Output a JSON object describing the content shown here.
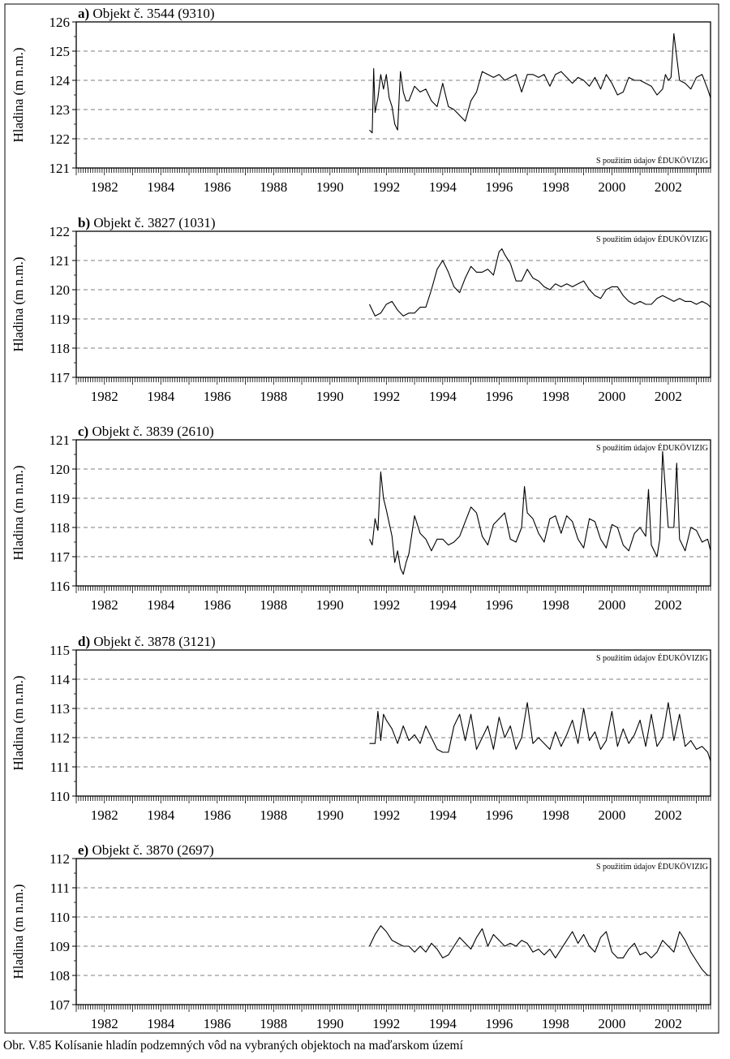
{
  "caption": "Obr. V.85 Kolísanie hladín podzemných vôd na vybraných objektoch na maďarskom území",
  "chart_data": [
    {
      "type": "line",
      "title_bold": "a)",
      "title": "Objekt č. 3544 (9310)",
      "ylabel": "Hladina (m n.m.)",
      "xlabel": "",
      "source_note": "S použitím údajov ÉDUKÖVIZIG",
      "note_position": "bottom-right",
      "xlim": [
        1981.0,
        2003.5
      ],
      "ylim": [
        121,
        126
      ],
      "yticks": [
        121,
        122,
        123,
        124,
        125,
        126
      ],
      "xticks": [
        1982,
        1984,
        1986,
        1988,
        1990,
        1992,
        1994,
        1996,
        1998,
        2000,
        2002
      ],
      "grid": "dashed-horizontal",
      "series": [
        {
          "x": [
            1991.4,
            1991.5,
            1991.55,
            1991.6,
            1991.7,
            1991.8,
            1991.9,
            1992.0,
            1992.1,
            1992.2,
            1992.3,
            1992.4,
            1992.5,
            1992.6,
            1992.7,
            1992.8,
            1993.0,
            1993.2,
            1993.4,
            1993.6,
            1993.8,
            1994.0,
            1994.2,
            1994.4,
            1994.6,
            1994.8,
            1995.0,
            1995.2,
            1995.4,
            1995.6,
            1995.8,
            1996.0,
            1996.2,
            1996.4,
            1996.6,
            1996.8,
            1997.0,
            1997.2,
            1997.4,
            1997.6,
            1997.8,
            1998.0,
            1998.2,
            1998.4,
            1998.6,
            1998.8,
            1999.0,
            1999.2,
            1999.4,
            1999.6,
            1999.8,
            2000.0,
            2000.2,
            2000.4,
            2000.6,
            2000.8,
            2001.0,
            2001.2,
            2001.4,
            2001.6,
            2001.8,
            2001.9,
            2002.0,
            2002.1,
            2002.2,
            2002.4,
            2002.6,
            2002.8,
            2003.0,
            2003.2,
            2003.4,
            2003.5
          ],
          "y": [
            122.3,
            122.2,
            124.4,
            122.9,
            123.4,
            124.2,
            123.7,
            124.2,
            123.4,
            123.1,
            122.5,
            122.3,
            124.3,
            123.6,
            123.3,
            123.3,
            123.8,
            123.6,
            123.7,
            123.3,
            123.1,
            123.9,
            123.1,
            123.0,
            122.8,
            122.6,
            123.3,
            123.6,
            124.3,
            124.2,
            124.1,
            124.2,
            124.0,
            124.1,
            124.2,
            123.6,
            124.2,
            124.2,
            124.1,
            124.2,
            123.8,
            124.2,
            124.3,
            124.1,
            123.9,
            124.1,
            124.0,
            123.8,
            124.1,
            123.7,
            124.2,
            123.9,
            123.5,
            123.6,
            124.1,
            124.0,
            124.0,
            123.9,
            123.8,
            123.5,
            123.7,
            124.2,
            124.0,
            124.1,
            125.6,
            124.0,
            123.9,
            123.7,
            124.1,
            124.2,
            123.7,
            123.4
          ]
        }
      ]
    },
    {
      "type": "line",
      "title_bold": "b)",
      "title": "Objekt č. 3827 (1031)",
      "ylabel": "Hladina (m n.m.)",
      "xlabel": "",
      "source_note": "S použitím údajov ÉDUKÖVIZIG",
      "note_position": "top-right",
      "xlim": [
        1981.0,
        2003.5
      ],
      "ylim": [
        117,
        122
      ],
      "yticks": [
        117,
        118,
        119,
        120,
        121,
        122
      ],
      "xticks": [
        1982,
        1984,
        1986,
        1988,
        1990,
        1992,
        1994,
        1996,
        1998,
        2000,
        2002
      ],
      "grid": "dashed-horizontal",
      "series": [
        {
          "x": [
            1991.4,
            1991.6,
            1991.8,
            1992.0,
            1992.2,
            1992.4,
            1992.6,
            1992.8,
            1993.0,
            1993.2,
            1993.4,
            1993.6,
            1993.8,
            1994.0,
            1994.2,
            1994.4,
            1994.6,
            1994.8,
            1995.0,
            1995.2,
            1995.4,
            1995.6,
            1995.8,
            1996.0,
            1996.1,
            1996.2,
            1996.4,
            1996.6,
            1996.8,
            1997.0,
            1997.2,
            1997.4,
            1997.6,
            1997.8,
            1998.0,
            1998.2,
            1998.4,
            1998.6,
            1998.8,
            1999.0,
            1999.2,
            1999.4,
            1999.6,
            1999.8,
            2000.0,
            2000.2,
            2000.4,
            2000.6,
            2000.8,
            2001.0,
            2001.2,
            2001.4,
            2001.6,
            2001.8,
            2002.0,
            2002.2,
            2002.4,
            2002.6,
            2002.8,
            2003.0,
            2003.2,
            2003.4,
            2003.5
          ],
          "y": [
            119.5,
            119.1,
            119.2,
            119.5,
            119.6,
            119.3,
            119.1,
            119.2,
            119.2,
            119.4,
            119.4,
            120.0,
            120.7,
            121.0,
            120.6,
            120.1,
            119.9,
            120.4,
            120.8,
            120.6,
            120.6,
            120.7,
            120.5,
            121.3,
            121.4,
            121.2,
            120.9,
            120.3,
            120.3,
            120.7,
            120.4,
            120.3,
            120.1,
            120.0,
            120.2,
            120.1,
            120.2,
            120.1,
            120.2,
            120.3,
            120.0,
            119.8,
            119.7,
            120.0,
            120.1,
            120.1,
            119.8,
            119.6,
            119.5,
            119.6,
            119.5,
            119.5,
            119.7,
            119.8,
            119.7,
            119.6,
            119.7,
            119.6,
            119.6,
            119.5,
            119.6,
            119.5,
            119.4
          ]
        }
      ]
    },
    {
      "type": "line",
      "title_bold": "c)",
      "title": "Objekt č. 3839 (2610)",
      "ylabel": "Hladina (m n.m.)",
      "xlabel": "",
      "source_note": "S použitím údajov ÉDUKÖVIZIG",
      "note_position": "top-right",
      "xlim": [
        1981.0,
        2003.5
      ],
      "ylim": [
        116,
        121
      ],
      "yticks": [
        116,
        117,
        118,
        119,
        120,
        121
      ],
      "xticks": [
        1982,
        1984,
        1986,
        1988,
        1990,
        1992,
        1994,
        1996,
        1998,
        2000,
        2002
      ],
      "grid": "dashed-horizontal",
      "series": [
        {
          "x": [
            1991.4,
            1991.5,
            1991.6,
            1991.7,
            1991.8,
            1991.9,
            1992.0,
            1992.2,
            1992.3,
            1992.4,
            1992.5,
            1992.6,
            1992.7,
            1992.8,
            1993.0,
            1993.2,
            1993.4,
            1993.6,
            1993.8,
            1994.0,
            1994.2,
            1994.4,
            1994.6,
            1994.8,
            1995.0,
            1995.2,
            1995.4,
            1995.6,
            1995.8,
            1996.0,
            1996.2,
            1996.4,
            1996.6,
            1996.8,
            1996.9,
            1997.0,
            1997.2,
            1997.4,
            1997.6,
            1997.8,
            1998.0,
            1998.2,
            1998.4,
            1998.6,
            1998.8,
            1999.0,
            1999.2,
            1999.4,
            1999.6,
            1999.8,
            2000.0,
            2000.2,
            2000.4,
            2000.6,
            2000.8,
            2001.0,
            2001.2,
            2001.3,
            2001.4,
            2001.6,
            2001.7,
            2001.8,
            2002.0,
            2002.2,
            2002.3,
            2002.4,
            2002.6,
            2002.8,
            2003.0,
            2003.2,
            2003.4,
            2003.5
          ],
          "y": [
            117.6,
            117.4,
            118.3,
            117.9,
            119.9,
            119.0,
            118.6,
            117.7,
            116.8,
            117.2,
            116.6,
            116.4,
            116.8,
            117.1,
            118.4,
            117.8,
            117.6,
            117.2,
            117.6,
            117.6,
            117.4,
            117.5,
            117.7,
            118.2,
            118.7,
            118.5,
            117.7,
            117.4,
            118.1,
            118.3,
            118.5,
            117.6,
            117.5,
            118.0,
            119.4,
            118.5,
            118.3,
            117.8,
            117.5,
            118.3,
            118.4,
            117.8,
            118.4,
            118.2,
            117.6,
            117.3,
            118.3,
            118.2,
            117.6,
            117.3,
            118.1,
            118.0,
            117.4,
            117.2,
            117.8,
            118.0,
            117.7,
            119.3,
            117.4,
            117.0,
            117.6,
            120.6,
            118.0,
            118.0,
            120.2,
            117.6,
            117.2,
            118.0,
            117.9,
            117.5,
            117.6,
            117.2
          ]
        }
      ]
    },
    {
      "type": "line",
      "title_bold": "d)",
      "title": "Objekt č. 3878 (3121)",
      "ylabel": "Hladina (m n.m.)",
      "xlabel": "",
      "source_note": "S použitím údajov ÉDUKÖVIZIG",
      "note_position": "top-right",
      "xlim": [
        1981.0,
        2003.5
      ],
      "ylim": [
        110,
        115
      ],
      "yticks": [
        110,
        111,
        112,
        113,
        114,
        115
      ],
      "xticks": [
        1982,
        1984,
        1986,
        1988,
        1990,
        1992,
        1994,
        1996,
        1998,
        2000,
        2002
      ],
      "grid": "dashed-horizontal",
      "series": [
        {
          "x": [
            1991.4,
            1991.6,
            1991.7,
            1991.8,
            1991.9,
            1992.0,
            1992.2,
            1992.4,
            1992.6,
            1992.8,
            1993.0,
            1993.2,
            1993.4,
            1993.6,
            1993.8,
            1994.0,
            1994.2,
            1994.4,
            1994.6,
            1994.8,
            1995.0,
            1995.2,
            1995.4,
            1995.6,
            1995.8,
            1996.0,
            1996.2,
            1996.4,
            1996.6,
            1996.8,
            1997.0,
            1997.2,
            1997.4,
            1997.6,
            1997.8,
            1998.0,
            1998.2,
            1998.4,
            1998.6,
            1998.8,
            1999.0,
            1999.2,
            1999.4,
            1999.6,
            1999.8,
            2000.0,
            2000.2,
            2000.4,
            2000.6,
            2000.8,
            2001.0,
            2001.2,
            2001.4,
            2001.6,
            2001.8,
            2002.0,
            2002.2,
            2002.4,
            2002.6,
            2002.8,
            2003.0,
            2003.2,
            2003.4,
            2003.5
          ],
          "y": [
            111.8,
            111.8,
            112.9,
            111.9,
            112.8,
            112.6,
            112.3,
            111.8,
            112.4,
            111.9,
            112.1,
            111.8,
            112.4,
            112.0,
            111.6,
            111.5,
            111.5,
            112.4,
            112.8,
            111.9,
            112.8,
            111.6,
            112.0,
            112.4,
            111.6,
            112.7,
            112.0,
            112.4,
            111.6,
            112.0,
            113.2,
            111.8,
            112.0,
            111.8,
            111.6,
            112.2,
            111.7,
            112.1,
            112.6,
            111.8,
            113.0,
            111.9,
            112.2,
            111.6,
            111.9,
            112.9,
            111.7,
            112.3,
            111.8,
            112.1,
            112.6,
            111.7,
            112.8,
            111.7,
            112.0,
            113.2,
            111.9,
            112.8,
            111.7,
            111.9,
            111.6,
            111.7,
            111.5,
            111.2
          ]
        }
      ]
    },
    {
      "type": "line",
      "title_bold": "e)",
      "title": "Objekt č. 3870 (2697)",
      "ylabel": "Hladina (m n.m.)",
      "xlabel": "",
      "source_note": "S použitím údajov ÉDUKÖVIZIG",
      "note_position": "top-right",
      "xlim": [
        1981.0,
        2003.5
      ],
      "ylim": [
        107,
        112
      ],
      "yticks": [
        107,
        108,
        109,
        110,
        111,
        112
      ],
      "xticks": [
        1982,
        1984,
        1986,
        1988,
        1990,
        1992,
        1994,
        1996,
        1998,
        2000,
        2002
      ],
      "grid": "dashed-horizontal",
      "series": [
        {
          "x": [
            1991.4,
            1991.6,
            1991.8,
            1992.0,
            1992.2,
            1992.4,
            1992.6,
            1992.8,
            1993.0,
            1993.2,
            1993.4,
            1993.6,
            1993.8,
            1994.0,
            1994.2,
            1994.4,
            1994.6,
            1994.8,
            1995.0,
            1995.2,
            1995.4,
            1995.6,
            1995.8,
            1996.0,
            1996.2,
            1996.4,
            1996.6,
            1996.8,
            1997.0,
            1997.2,
            1997.4,
            1997.6,
            1997.8,
            1998.0,
            1998.2,
            1998.4,
            1998.6,
            1998.8,
            1999.0,
            1999.2,
            1999.4,
            1999.6,
            1999.8,
            2000.0,
            2000.2,
            2000.4,
            2000.6,
            2000.8,
            2001.0,
            2001.2,
            2001.4,
            2001.6,
            2001.8,
            2002.0,
            2002.2,
            2002.4,
            2002.6,
            2002.8,
            2003.0,
            2003.2,
            2003.4,
            2003.5
          ],
          "y": [
            109.0,
            109.4,
            109.7,
            109.5,
            109.2,
            109.1,
            109.0,
            109.0,
            108.8,
            109.0,
            108.8,
            109.1,
            108.9,
            108.6,
            108.7,
            109.0,
            109.3,
            109.1,
            108.9,
            109.3,
            109.6,
            109.0,
            109.4,
            109.2,
            109.0,
            109.1,
            109.0,
            109.2,
            109.1,
            108.8,
            108.9,
            108.7,
            108.9,
            108.6,
            108.9,
            109.2,
            109.5,
            109.1,
            109.4,
            109.0,
            108.8,
            109.3,
            109.5,
            108.8,
            108.6,
            108.6,
            108.9,
            109.1,
            108.7,
            108.8,
            108.6,
            108.8,
            109.2,
            109.0,
            108.8,
            109.5,
            109.2,
            108.8,
            108.5,
            108.2,
            108.0,
            108.0
          ]
        }
      ]
    }
  ]
}
